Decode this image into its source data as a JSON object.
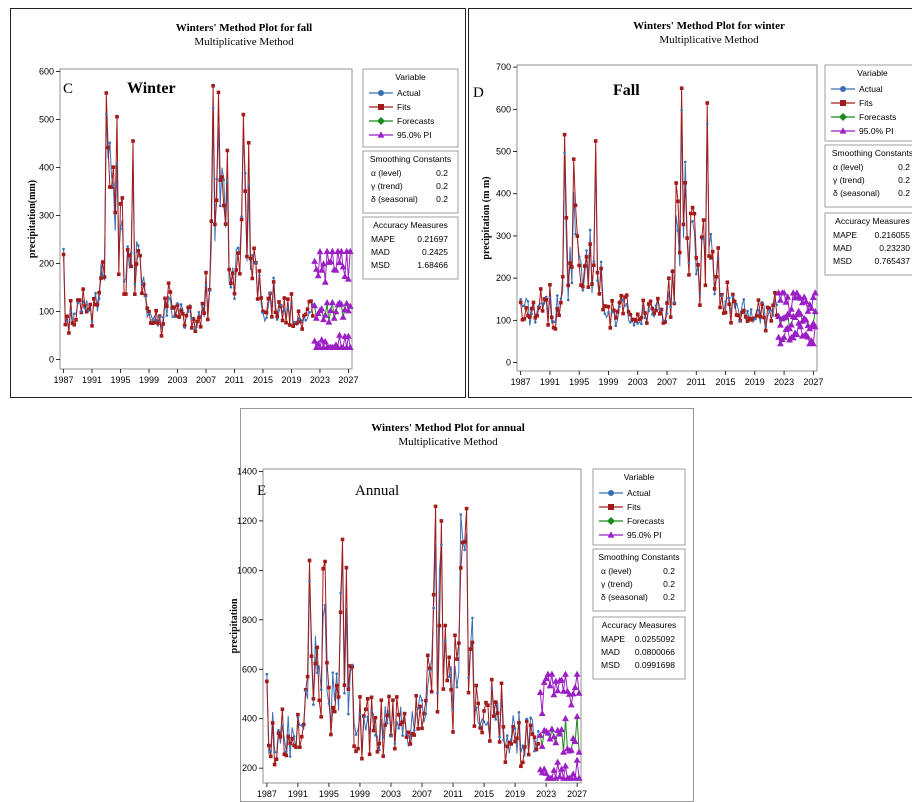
{
  "colors": {
    "actual": "#3a6fb5",
    "fits": "#a31a1a",
    "forecasts": "#1c8a1c",
    "pi": "#9b1fc4"
  },
  "chart_data": [
    {
      "id": "C",
      "type": "line",
      "title": "Winters' Method Plot for fall",
      "subtitle": "Multiplicative Method",
      "panel_letter": "C",
      "season_label": "Winter",
      "ylabel": "precipitation(mm)",
      "ylim": [
        -20,
        605
      ],
      "yticks": [
        0,
        100,
        200,
        300,
        400,
        500,
        600
      ],
      "xlim": [
        1986.5,
        2027.5
      ],
      "xticks": [
        1987,
        1991,
        1995,
        1999,
        2003,
        2007,
        2011,
        2015,
        2019,
        2023,
        2027
      ],
      "legend_title": "Variable",
      "legend": [
        "Actual",
        "Fits",
        "Forecasts",
        "95.0% PI"
      ],
      "smoothing_title": "Smoothing Constants",
      "smoothing": [
        [
          "α (level)",
          "0.2"
        ],
        [
          "γ (trend)",
          "0.2"
        ],
        [
          "δ (seasonal)",
          "0.2"
        ]
      ],
      "accuracy_title": "Accuracy Measures",
      "accuracy": [
        [
          "MAPE",
          "0.21697"
        ],
        [
          "MAD",
          "0.2425"
        ],
        [
          "MSD",
          "1.68466"
        ]
      ],
      "series_seasonal": [
        {
          "center": 1989.5,
          "amp": 20,
          "base": 90
        },
        {
          "center": 1993.8,
          "amp": 330,
          "base": 90
        },
        {
          "center": 1997.0,
          "amp": 200,
          "base": 90
        },
        {
          "center": 2002.0,
          "amp": 40,
          "base": 70
        },
        {
          "center": 2009.0,
          "amp": 380,
          "base": 80
        },
        {
          "center": 2012.5,
          "amp": 300,
          "base": 80
        },
        {
          "center": 2016.5,
          "amp": 60,
          "base": 70
        },
        {
          "center": 2019.5,
          "amp": 20,
          "base": 55
        }
      ],
      "actual_peak": {
        "x": 1987,
        "y": 230
      },
      "fit_peaks": [
        [
          1993.0,
          555
        ],
        [
          1996.7,
          455
        ],
        [
          2008.0,
          570
        ],
        [
          2012.3,
          510
        ]
      ],
      "forecast_base": 95,
      "pi_upper_max": 225,
      "pi_lower_min": 25
    },
    {
      "id": "D",
      "type": "line",
      "title": "Winters' Method Plot for winter",
      "subtitle": "Multiplicative Method",
      "panel_letter": "D",
      "season_label": "Fall",
      "ylabel": "precipitation (m m)",
      "ylim": [
        -20,
        705
      ],
      "yticks": [
        0,
        100,
        200,
        300,
        400,
        500,
        600,
        700
      ],
      "xlim": [
        1986.5,
        2027.5
      ],
      "xticks": [
        1987,
        1991,
        1995,
        1999,
        2003,
        2007,
        2011,
        2015,
        2019,
        2023,
        2027
      ],
      "legend_title": "Variable",
      "legend": [
        "Actual",
        "Fits",
        "Forecasts",
        "95.0% PI"
      ],
      "smoothing_title": "Smoothing Constants",
      "smoothing": [
        [
          "α (level)",
          "0.2"
        ],
        [
          "γ (trend)",
          "0.2"
        ],
        [
          "δ (seasonal)",
          "0.2"
        ]
      ],
      "accuracy_title": "Accuracy Measures",
      "accuracy": [
        [
          "MAPE",
          "0.216055"
        ],
        [
          "MAD",
          "0.23230"
        ],
        [
          "MSD",
          "0.765437"
        ]
      ],
      "series_seasonal": [
        {
          "center": 1989.0,
          "amp": 20,
          "base": 90
        },
        {
          "center": 1994.0,
          "amp": 230,
          "base": 110
        },
        {
          "center": 1996.5,
          "amp": 200,
          "base": 110
        },
        {
          "center": 2002.5,
          "amp": 20,
          "base": 70
        },
        {
          "center": 2009.5,
          "amp": 320,
          "base": 120
        },
        {
          "center": 2012.5,
          "amp": 250,
          "base": 120
        },
        {
          "center": 2016.0,
          "amp": 50,
          "base": 80
        },
        {
          "center": 2019.5,
          "amp": 10,
          "base": 55
        }
      ],
      "actual_peak": {
        "x": 1987,
        "y": 150
      },
      "fit_peaks": [
        [
          1993.0,
          540
        ],
        [
          1997.2,
          525
        ],
        [
          2009.0,
          650
        ],
        [
          2012.5,
          615
        ]
      ],
      "forecast_base": 100,
      "pi_upper_max": 165,
      "pi_lower_min": 45
    },
    {
      "id": "E",
      "type": "line",
      "title": "Winters' Method Plot for annual",
      "subtitle": "Multiplicative Method",
      "panel_letter": "E",
      "season_label": "Annual",
      "ylabel": "precipitation",
      "ylim": [
        140,
        1410
      ],
      "yticks": [
        200,
        400,
        600,
        800,
        1000,
        1200,
        1400
      ],
      "xlim": [
        1986.5,
        2027.5
      ],
      "xticks": [
        1987,
        1991,
        1995,
        1999,
        2003,
        2007,
        2011,
        2015,
        2019,
        2023,
        2027
      ],
      "legend_title": "Variable",
      "legend": [
        "Actual",
        "Fits",
        "Forecasts",
        "95.0% PI"
      ],
      "smoothing_title": "Smoothing Constants",
      "smoothing": [
        [
          "α (level)",
          "0.2"
        ],
        [
          "γ (trend)",
          "0.2"
        ],
        [
          "δ (seasonal)",
          "0.2"
        ]
      ],
      "accuracy_title": "Accuracy Measures",
      "accuracy": [
        [
          "MAPE",
          "0.0255092"
        ],
        [
          "MAD",
          "0.0800066"
        ],
        [
          "MSD",
          "0.0991698"
        ]
      ],
      "series_seasonal": [
        {
          "center": 1989.0,
          "amp": 60,
          "base": 290
        },
        {
          "center": 1993.5,
          "amp": 500,
          "base": 330
        },
        {
          "center": 1996.5,
          "amp": 420,
          "base": 330
        },
        {
          "center": 2002.0,
          "amp": 40,
          "base": 250
        },
        {
          "center": 2009.0,
          "amp": 620,
          "base": 350
        },
        {
          "center": 2012.3,
          "amp": 550,
          "base": 350
        },
        {
          "center": 2016.5,
          "amp": 120,
          "base": 300
        },
        {
          "center": 2020.0,
          "amp": 40,
          "base": 300
        }
      ],
      "actual_peak": {
        "x": 1988,
        "y": 580
      },
      "fit_peaks": [
        [
          1992.5,
          1040
        ],
        [
          1996.8,
          1125
        ],
        [
          2009.5,
          1200
        ],
        [
          2012.7,
          1250
        ]
      ],
      "forecast_base": 330,
      "pi_upper_max": 580,
      "pi_lower_min": 160
    }
  ]
}
